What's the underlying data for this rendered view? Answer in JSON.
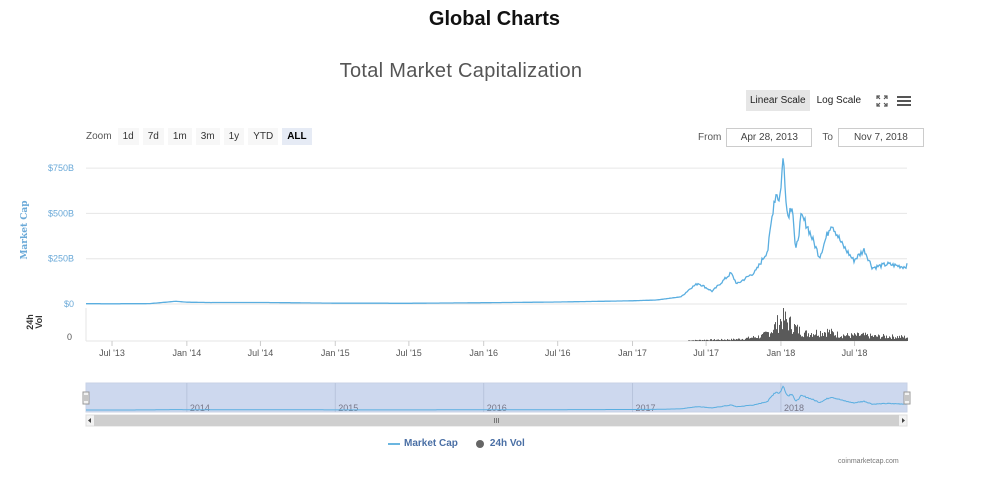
{
  "page_title": "Global Charts",
  "toolbar": {
    "linear_scale": "Linear Scale",
    "log_scale": "Log Scale"
  },
  "zoom": {
    "label": "Zoom",
    "buttons": [
      "1d",
      "7d",
      "1m",
      "3m",
      "1y",
      "YTD",
      "ALL"
    ],
    "active": "ALL"
  },
  "range": {
    "from_label": "From",
    "from_value": "Apr 28, 2013",
    "to_label": "To",
    "to_value": "Nov 7, 2018"
  },
  "credit": "coinmarketcap.com",
  "colors": {
    "market_cap": "#5aaee0",
    "volume": "#5a5a5a",
    "navigator_fill": "#cdd8ee"
  },
  "chart_data": {
    "type": "line",
    "title": "Total Market Capitalization",
    "x_start": "2013-04-28",
    "x_end": "2018-11-07",
    "x_ticks": [
      "Jul '13",
      "Jan '14",
      "Jul '14",
      "Jan '15",
      "Jul '15",
      "Jan '16",
      "Jul '16",
      "Jan '17",
      "Jul '17",
      "Jan '18",
      "Jul '18"
    ],
    "y_axis": {
      "label": "Market Cap",
      "ticks": [
        "$0",
        "$250B",
        "$500B",
        "$750B"
      ],
      "unit": "billion USD",
      "range": [
        0,
        850
      ]
    },
    "volume_axis": {
      "label": "24h Vol",
      "ticks": [
        "0"
      ]
    },
    "navigator_labels": [
      "2014",
      "2015",
      "2016",
      "2017",
      "2018"
    ],
    "grid": true,
    "legend": "bottom-center",
    "series": [
      {
        "name": "Market Cap",
        "points": [
          [
            "2013-04-28",
            1.6
          ],
          [
            "2013-07-01",
            1.2
          ],
          [
            "2013-10-01",
            2
          ],
          [
            "2013-11-30",
            14
          ],
          [
            "2013-12-05",
            15
          ],
          [
            "2014-01-01",
            10
          ],
          [
            "2014-03-01",
            8
          ],
          [
            "2014-07-01",
            8.5
          ],
          [
            "2014-12-31",
            4.5
          ],
          [
            "2015-07-01",
            4
          ],
          [
            "2015-12-31",
            7
          ],
          [
            "2016-07-01",
            11
          ],
          [
            "2016-12-31",
            17.7
          ],
          [
            "2017-03-01",
            22
          ],
          [
            "2017-05-01",
            40
          ],
          [
            "2017-05-25",
            90
          ],
          [
            "2017-06-12",
            115
          ],
          [
            "2017-07-16",
            70
          ],
          [
            "2017-08-31",
            170
          ],
          [
            "2017-09-15",
            110
          ],
          [
            "2017-10-31",
            180
          ],
          [
            "2017-11-30",
            300
          ],
          [
            "2017-12-15",
            570
          ],
          [
            "2017-12-22",
            620
          ],
          [
            "2017-12-28",
            560
          ],
          [
            "2018-01-07",
            813
          ],
          [
            "2018-01-17",
            480
          ],
          [
            "2018-01-29",
            560
          ],
          [
            "2018-02-06",
            280
          ],
          [
            "2018-02-20",
            480
          ],
          [
            "2018-03-05",
            440
          ],
          [
            "2018-04-06",
            260
          ],
          [
            "2018-05-05",
            450
          ],
          [
            "2018-05-31",
            330
          ],
          [
            "2018-06-29",
            240
          ],
          [
            "2018-07-25",
            300
          ],
          [
            "2018-08-14",
            200
          ],
          [
            "2018-09-20",
            220
          ],
          [
            "2018-10-31",
            205
          ],
          [
            "2018-11-07",
            213
          ]
        ]
      },
      {
        "name": "24h Vol",
        "unit": "billion USD",
        "range": [
          0,
          70
        ],
        "points": [
          [
            "2017-05-15",
            1.5
          ],
          [
            "2017-07-01",
            3
          ],
          [
            "2017-08-31",
            4
          ],
          [
            "2017-10-01",
            6
          ],
          [
            "2017-11-15",
            13
          ],
          [
            "2017-12-05",
            25
          ],
          [
            "2017-12-22",
            45
          ],
          [
            "2018-01-05",
            60
          ],
          [
            "2018-01-17",
            50
          ],
          [
            "2018-02-10",
            30
          ],
          [
            "2018-03-01",
            20
          ],
          [
            "2018-04-25",
            25
          ],
          [
            "2018-05-15",
            18
          ],
          [
            "2018-06-15",
            14
          ],
          [
            "2018-07-20",
            15
          ],
          [
            "2018-08-15",
            12
          ],
          [
            "2018-09-20",
            12
          ],
          [
            "2018-11-07",
            10
          ]
        ]
      }
    ]
  }
}
